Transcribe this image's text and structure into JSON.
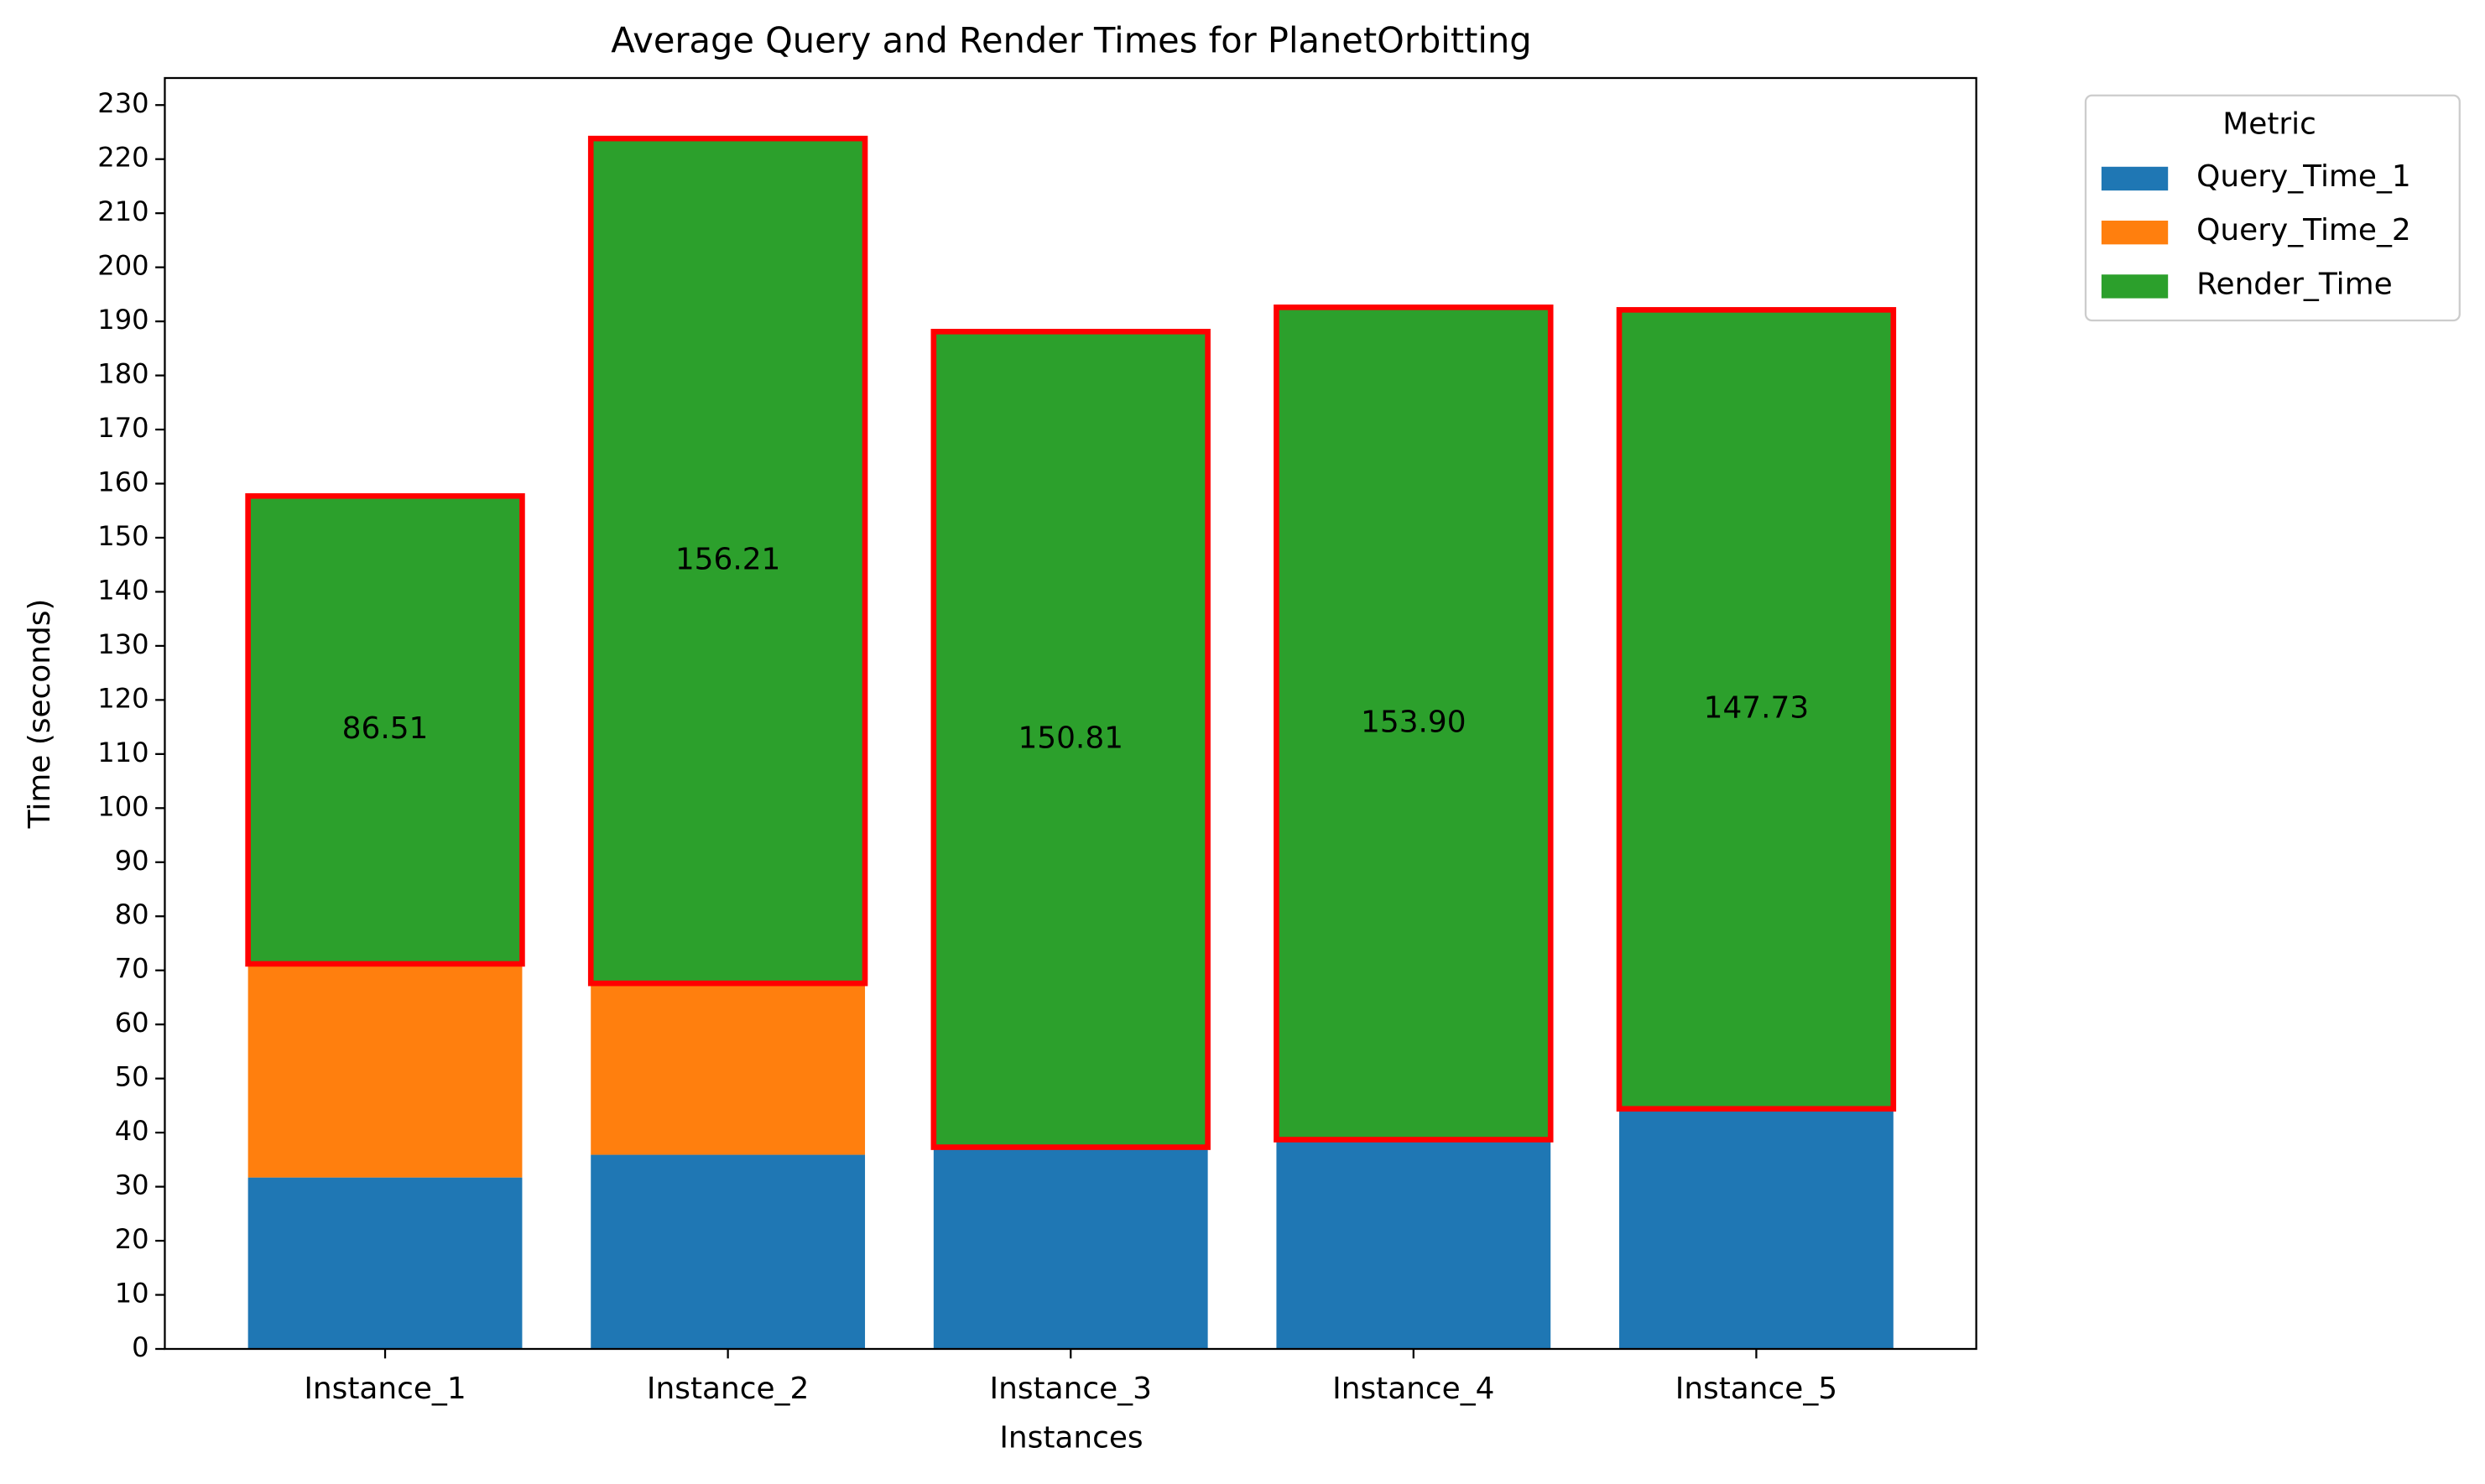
{
  "chart_data": {
    "type": "stacked_bar",
    "title": "Average Query and Render Times for PlanetOrbitting",
    "x_label": "Instances",
    "y_label": "Time (seconds)",
    "categories": [
      "Instance_1",
      "Instance_2",
      "Instance_3",
      "Instance_4",
      "Instance_5"
    ],
    "series": [
      {
        "name": "Query_Time_1",
        "color": "#1f77b4",
        "values": [
          31.7,
          35.9,
          37.3,
          38.7,
          44.4
        ]
      },
      {
        "name": "Query_Time_2",
        "color": "#ff7f0e",
        "values": [
          39.5,
          31.7,
          0,
          0,
          0
        ]
      },
      {
        "name": "Render_Time",
        "color": "#2ca02c",
        "edge_color": "#ff0000",
        "values": [
          86.51,
          156.21,
          150.81,
          153.9,
          147.73
        ],
        "value_labels": [
          "86.51",
          "156.21",
          "150.81",
          "153.90",
          "147.73"
        ]
      }
    ],
    "ylim": [
      0,
      235
    ],
    "yticks": [
      0,
      10,
      20,
      30,
      40,
      50,
      60,
      70,
      80,
      90,
      100,
      110,
      120,
      130,
      140,
      150,
      160,
      170,
      180,
      190,
      200,
      210,
      220,
      230
    ],
    "grid": false,
    "legend_title": "Metric",
    "legend_loc": "outside-upper-right"
  }
}
